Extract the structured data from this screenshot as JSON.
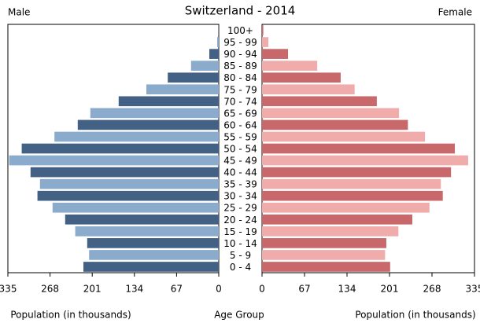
{
  "chart_data": {
    "type": "pyramid",
    "title": "Switzerland - 2014",
    "categories": [
      "0 - 4",
      "5 - 9",
      "10 - 14",
      "15 - 19",
      "20 - 24",
      "25 - 29",
      "30 - 34",
      "35 - 39",
      "40 - 44",
      "45 - 49",
      "50 - 54",
      "55 - 59",
      "60 - 64",
      "65 - 69",
      "70 - 74",
      "75 - 79",
      "80 - 84",
      "85 - 89",
      "90 - 94",
      "95 - 99",
      "100+"
    ],
    "series": [
      {
        "name": "Male",
        "colors": [
          "#436085",
          "#8aabcb"
        ],
        "values": [
          215,
          206,
          209,
          228,
          244,
          264,
          288,
          284,
          299,
          333,
          313,
          261,
          224,
          204,
          159,
          115,
          81,
          44,
          15,
          2.5,
          0.3
        ]
      },
      {
        "name": "Female",
        "colors": [
          "#c8686a",
          "#efacab"
        ],
        "values": [
          202,
          194,
          196,
          215,
          237,
          264,
          285,
          282,
          298,
          325,
          304,
          257,
          230,
          216,
          181,
          146,
          124,
          87,
          41,
          10,
          2
        ]
      }
    ],
    "xlim": [
      0,
      335
    ],
    "xticks": [
      0,
      67,
      134,
      201,
      268,
      335
    ],
    "xlabel": "Population (in thousands)",
    "ylabel": "Age Group"
  }
}
